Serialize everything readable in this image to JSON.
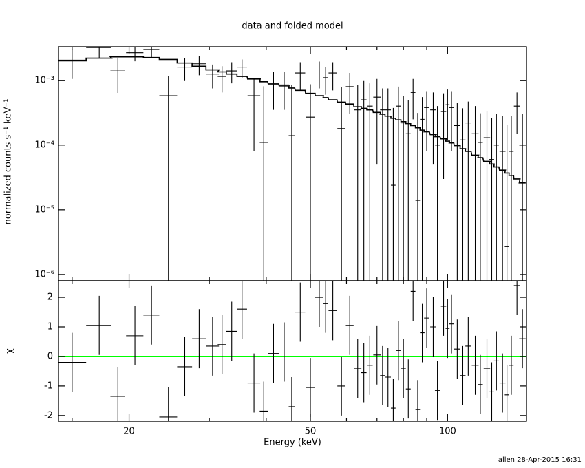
{
  "chart_data": {
    "type": "scatter",
    "title": "data and folded model",
    "xlabel": "Energy (keV)",
    "ylabel": "normalized counts s⁻¹ keV⁻¹",
    "annotation": "allen 28-Apr-2015 16:31",
    "log_x": true,
    "log_y": true,
    "xlim": [
      14,
      149
    ],
    "xticks": [
      20,
      50,
      100
    ],
    "xminor_ticks": [
      15,
      30,
      40,
      60,
      70,
      80,
      90
    ],
    "ylim": [
      8e-07,
      0.0033
    ],
    "yticks": [
      {
        "value": 1e-06,
        "label": "10⁻⁶"
      },
      {
        "value": 1e-05,
        "label": "10⁻⁵"
      },
      {
        "value": 0.0001,
        "label": "10⁻⁴"
      },
      {
        "value": 0.001,
        "label": "10⁻³"
      }
    ],
    "x": [
      15,
      17.2,
      18.9,
      20.6,
      22.4,
      24.4,
      26.5,
      28.5,
      30.5,
      32,
      33.6,
      35.4,
      37.6,
      39.5,
      41.5,
      43.8,
      45.5,
      47.5,
      50,
      52.3,
      54,
      56,
      58.5,
      61,
      63.5,
      65.5,
      67.5,
      70,
      72,
      74,
      76,
      78,
      80,
      82,
      84,
      86,
      88,
      90,
      93,
      95,
      98,
      100,
      102,
      105,
      108,
      111,
      115,
      118,
      122,
      125,
      128,
      132,
      135,
      138,
      142,
      146
    ],
    "xerr": [
      1.1,
      1.1,
      0.7,
      0.9,
      0.9,
      1.1,
      1.0,
      1.0,
      1.0,
      0.7,
      0.9,
      0.9,
      1.2,
      0.8,
      1.1,
      1.1,
      0.7,
      1.2,
      1.2,
      1.1,
      0.7,
      1.2,
      1.2,
      1.2,
      1.2,
      0.9,
      1.0,
      1.3,
      0.9,
      1.1,
      0.9,
      1.0,
      1.0,
      1.0,
      1.0,
      1.0,
      1.0,
      1.2,
      1.4,
      1.2,
      1.3,
      1.0,
      1.2,
      1.6,
      1.5,
      1.6,
      2,
      1.5,
      2,
      1.5,
      1.6,
      2,
      1.5,
      1.6,
      2.2,
      2.4
    ],
    "series": [
      {
        "name": "data",
        "color": "#000000",
        "values": [
          0.00205,
          0.0032,
          0.00144,
          0.00267,
          0.003,
          0.00058,
          0.0016,
          0.0018,
          0.00125,
          0.00115,
          0.0014,
          0.0016,
          0.00058,
          0.00011,
          0.00085,
          0.00085,
          0.00014,
          0.0013,
          0.00027,
          0.00135,
          0.0011,
          0.0013,
          0.00018,
          0.0008,
          0.00035,
          0.0005,
          0.0004,
          0.00055,
          0.00035,
          0.00035,
          2.4e-05,
          0.0004,
          0.00022,
          0.00015,
          0.00065,
          1.4e-05,
          0.00025,
          0.00038,
          0.00035,
          0.0001,
          0.00033,
          0.00042,
          0.00038,
          0.0002,
          0.00012,
          0.00022,
          0.00015,
          0.00011,
          0.00013,
          6e-05,
          0.0001,
          8e-05,
          2.7e-06,
          8e-05,
          0.0004,
          0.0001
        ],
        "errors": [
          0.001,
          0.001,
          0.0008,
          0.0007,
          0.0008,
          0.0006,
          0.0006,
          0.0006,
          0.0005,
          0.0005,
          0.0005,
          0.0005,
          0.0005,
          0.0007,
          0.0005,
          0.0005,
          0.0007,
          0.0006,
          0.0006,
          0.0006,
          0.0005,
          0.0006,
          0.0006,
          0.0005,
          0.0005,
          0.0005,
          0.0005,
          0.0005,
          0.0004,
          0.0004,
          0.00035,
          0.0004,
          0.00035,
          0.00035,
          0.0004,
          0.0003,
          0.0003,
          0.0003,
          0.0003,
          0.0003,
          0.0003,
          0.0003,
          0.0003,
          0.00025,
          0.00025,
          0.00025,
          0.00025,
          0.0002,
          0.0002,
          0.0002,
          0.0002,
          0.0002,
          0.0002,
          0.0002,
          0.00025,
          0.0002
        ]
      },
      {
        "name": "model",
        "color": "#000000",
        "step": true,
        "values": [
          0.002,
          0.0022,
          0.0023,
          0.0023,
          0.00225,
          0.0021,
          0.00185,
          0.00165,
          0.00145,
          0.00135,
          0.00125,
          0.00115,
          0.00105,
          0.00095,
          0.00088,
          0.00082,
          0.00076,
          0.0007,
          0.00063,
          0.00058,
          0.00054,
          0.0005,
          0.00046,
          0.00043,
          0.00039,
          0.00037,
          0.00035,
          0.00032,
          0.0003,
          0.00028,
          0.00026,
          0.000245,
          0.00023,
          0.000215,
          0.0002,
          0.000185,
          0.00017,
          0.00016,
          0.000145,
          0.000135,
          0.000125,
          0.000115,
          0.000108,
          9.8e-05,
          8.8e-05,
          8e-05,
          7e-05,
          6.4e-05,
          5.6e-05,
          5.1e-05,
          4.6e-05,
          4.1e-05,
          3.7e-05,
          3.4e-05,
          3e-05,
          2.6e-05
        ]
      }
    ],
    "residuals": {
      "ylabel": "χ",
      "ylim": [
        -2.19,
        2.56
      ],
      "yticks": [
        -2,
        -1,
        0,
        1,
        2
      ],
      "color": "#000000",
      "error": 1,
      "reference_line": {
        "value": 0,
        "color": "#00ff00"
      },
      "values": [
        -0.2,
        1.05,
        -1.35,
        0.7,
        1.4,
        -2.05,
        -0.35,
        0.6,
        0.35,
        0.4,
        0.85,
        1.6,
        -0.9,
        -1.85,
        0.1,
        0.15,
        -1.7,
        1.5,
        -1.05,
        2.0,
        1.8,
        1.55,
        -1.0,
        1.05,
        -0.4,
        -0.55,
        -0.3,
        0.05,
        -0.65,
        -0.7,
        -1.75,
        0.2,
        -0.4,
        -1.1,
        2.2,
        -1.8,
        0.8,
        1.3,
        1.0,
        -1.15,
        1.7,
        0.95,
        1.1,
        0.25,
        -0.65,
        0.35,
        -0.3,
        -0.95,
        -0.4,
        -1.2,
        -0.15,
        -0.9,
        -1.3,
        -0.3,
        2.4,
        0.6
      ]
    }
  }
}
